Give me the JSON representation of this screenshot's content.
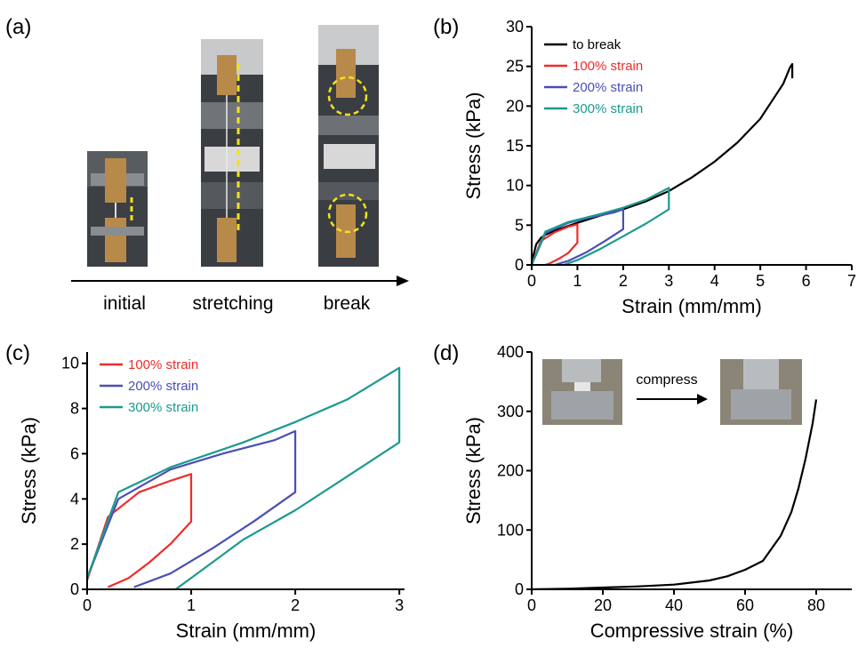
{
  "panels": {
    "a": {
      "letter": "(a)",
      "stages": [
        "initial",
        "stretching",
        "break"
      ]
    },
    "d_inset": {
      "arrow_label": "compress"
    }
  },
  "chart_data": [
    {
      "id": "b",
      "letter": "(b)",
      "type": "line",
      "xlabel": "Strain (mm/mm)",
      "ylabel": "Stress (kPa)",
      "xlim": [
        0,
        7
      ],
      "ylim": [
        0,
        30
      ],
      "xticks": [
        0,
        1,
        2,
        3,
        4,
        5,
        6,
        7
      ],
      "yticks": [
        0,
        5,
        10,
        15,
        20,
        25,
        30
      ],
      "legend_position": "top-left",
      "series": [
        {
          "name": "to break",
          "color": "#000000",
          "x": [
            0,
            0.05,
            0.1,
            0.2,
            0.3,
            0.5,
            0.8,
            1.0,
            1.5,
            2.0,
            2.5,
            3.0,
            3.5,
            4.0,
            4.5,
            5.0,
            5.5,
            5.65,
            5.7,
            5.7
          ],
          "y": [
            0,
            1.5,
            2.6,
            3.4,
            3.8,
            4.3,
            4.9,
            5.3,
            6.2,
            7.0,
            8.0,
            9.3,
            11.0,
            13.0,
            15.4,
            18.4,
            22.8,
            24.9,
            25.3,
            23.5
          ]
        },
        {
          "name": "100% strain",
          "color": "#ef2b2b",
          "x": [
            0,
            0.2,
            0.5,
            0.8,
            1.0,
            1.0,
            0.8,
            0.6,
            0.4,
            0.3
          ],
          "y": [
            0,
            3.0,
            4.1,
            4.8,
            5.1,
            2.8,
            1.5,
            0.8,
            0.2,
            0
          ]
        },
        {
          "name": "200% strain",
          "color": "#4a4fb3",
          "x": [
            0,
            0.3,
            0.8,
            1.3,
            1.8,
            2.0,
            2.0,
            1.6,
            1.2,
            0.8,
            0.5
          ],
          "y": [
            0,
            4.0,
            5.3,
            6.0,
            6.6,
            7.0,
            4.5,
            3.0,
            1.6,
            0.5,
            0
          ]
        },
        {
          "name": "300% strain",
          "color": "#1b9a8e",
          "x": [
            0,
            0.3,
            0.8,
            1.5,
            2.0,
            2.5,
            3.0,
            3.0,
            2.5,
            2.0,
            1.5,
            1.0,
            0.7
          ],
          "y": [
            0,
            4.2,
            5.4,
            6.4,
            7.2,
            8.2,
            9.7,
            7.0,
            5.2,
            3.6,
            2.0,
            0.6,
            0
          ]
        }
      ]
    },
    {
      "id": "c",
      "letter": "(c)",
      "type": "line",
      "xlabel": "Strain (mm/mm)",
      "ylabel": "Stress (kPa)",
      "xlim": [
        0,
        3.05
      ],
      "ylim": [
        0,
        10.5
      ],
      "xticks": [
        0,
        1,
        2,
        3
      ],
      "yticks": [
        0,
        2,
        4,
        6,
        8,
        10
      ],
      "legend_position": "top-left",
      "series": [
        {
          "name": "100% strain",
          "color": "#ef2b2b",
          "x": [
            0.0,
            0.2,
            0.5,
            0.8,
            1.0,
            1.0,
            0.8,
            0.6,
            0.4,
            0.2
          ],
          "y": [
            0.4,
            3.2,
            4.3,
            4.8,
            5.1,
            3.0,
            2.0,
            1.2,
            0.5,
            0.1
          ]
        },
        {
          "name": "200% strain",
          "color": "#4a4fb3",
          "x": [
            0.0,
            0.3,
            0.8,
            1.3,
            1.8,
            2.0,
            2.0,
            1.6,
            1.2,
            0.8,
            0.45
          ],
          "y": [
            0.5,
            4.0,
            5.3,
            6.0,
            6.6,
            7.0,
            4.3,
            3.0,
            1.8,
            0.7,
            0.1
          ]
        },
        {
          "name": "300% strain",
          "color": "#1b9a8e",
          "x": [
            0.0,
            0.3,
            0.8,
            1.5,
            2.0,
            2.5,
            3.0,
            3.0,
            2.5,
            2.0,
            1.5,
            1.0,
            0.85
          ],
          "y": [
            0.5,
            4.3,
            5.4,
            6.5,
            7.4,
            8.4,
            9.8,
            6.5,
            5.0,
            3.5,
            2.2,
            0.5,
            0.0
          ]
        }
      ]
    },
    {
      "id": "d",
      "letter": "(d)",
      "type": "line",
      "xlabel": "Compressive strain (%)",
      "ylabel": "Stress (kPa)",
      "xlim": [
        0,
        90
      ],
      "ylim": [
        0,
        400
      ],
      "xticks": [
        0,
        20,
        40,
        60,
        80
      ],
      "yticks": [
        0,
        100,
        200,
        300,
        400
      ],
      "series": [
        {
          "color": "#000000",
          "x": [
            0,
            10,
            20,
            30,
            40,
            50,
            55,
            60,
            65,
            70,
            73,
            75,
            77,
            79,
            80
          ],
          "y": [
            0,
            1,
            3,
            5,
            8,
            15,
            22,
            33,
            48,
            90,
            130,
            170,
            220,
            280,
            320
          ]
        }
      ]
    }
  ]
}
